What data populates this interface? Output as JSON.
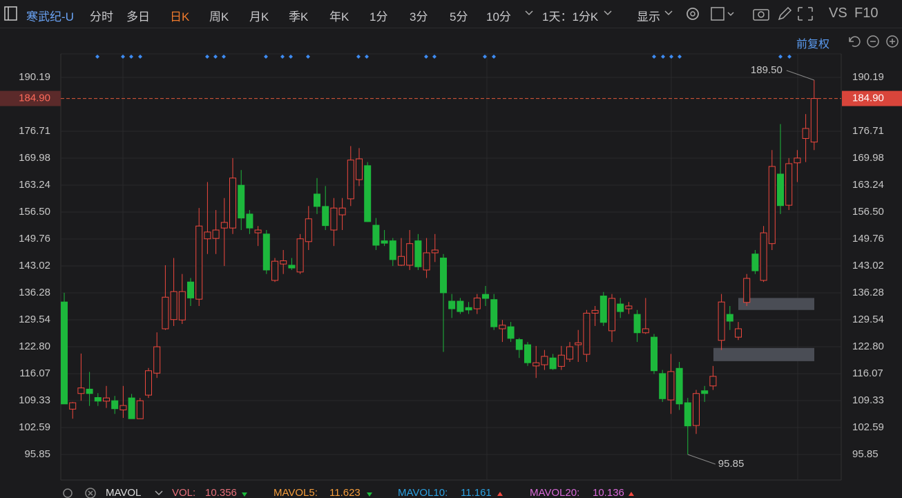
{
  "header": {
    "symbol": "寒武纪-U",
    "tabs": [
      "分时",
      "多日",
      "日K",
      "周K",
      "月K",
      "季K",
      "年K",
      "1分",
      "3分",
      "5分",
      "10分"
    ],
    "period": "1天：1分K",
    "display": "显示",
    "vs": "VS",
    "f10": "F10",
    "adjust": "前复权"
  },
  "chart_data": {
    "type": "candlestick",
    "open": [
      134.0,
      107.2,
      111.1,
      112.2,
      110.1,
      109.2,
      109.3,
      107.0,
      110.0,
      104.8,
      110.7,
      116.2,
      127.3,
      129.6,
      129.5,
      139.0,
      134.7,
      149.8,
      149.9,
      152.5,
      152.5,
      163.2,
      156.0,
      151.3,
      151.0,
      139.4,
      143.5,
      143.2,
      141.5,
      149.1,
      161.0,
      157.9,
      152.0,
      155.8,
      159.8,
      164.6,
      168.1,
      153.2,
      149.3,
      149.3,
      143.2,
      143.2,
      149.3,
      142.0,
      146.3,
      145.0,
      134.2,
      134.2,
      132.6,
      132.3,
      135.9,
      134.6,
      127.3,
      127.8,
      124.6,
      123.3,
      118.0,
      118.3,
      120.0,
      117.9,
      119.7,
      123.3,
      120.9,
      131.2,
      135.5,
      126.8,
      133.5,
      132.3,
      130.9,
      126.3,
      125.2,
      116.1,
      109.5,
      117.4,
      108.8,
      103.1,
      111.8,
      113.0,
      124.4,
      130.9,
      125.2,
      133.9,
      146.0,
      139.4,
      148.6,
      166.0,
      158.2,
      168.8,
      174.9,
      174.0
    ],
    "high": [
      136.3,
      109.0,
      121.1,
      116.5,
      111.2,
      113.0,
      110.5,
      113.0,
      111.0,
      110.0,
      117.5,
      126.4,
      143.2,
      145.0,
      141.0,
      140.0,
      157.5,
      164.0,
      157.0,
      160.0,
      170.0,
      167.0,
      157.0,
      153.0,
      152.0,
      145.0,
      147.0,
      145.0,
      151.0,
      158.0,
      165.0,
      163.0,
      160.0,
      160.0,
      173.0,
      172.5,
      169.0,
      155.0,
      152.0,
      150.0,
      150.0,
      152.0,
      151.0,
      150.0,
      151.0,
      146.0,
      136.0,
      135.0,
      134.0,
      136.0,
      138.0,
      136.0,
      129.5,
      129.0,
      125.0,
      124.0,
      123.0,
      122.0,
      121.0,
      123.0,
      124.0,
      127.0,
      132.0,
      133.0,
      136.5,
      136.0,
      135.0,
      134.0,
      132.0,
      135.0,
      126.0,
      117.0,
      121.0,
      119.0,
      110.0,
      112.0,
      113.0,
      118.0,
      136.0,
      133.0,
      129.0,
      141.0,
      147.0,
      153.0,
      172.0,
      178.5,
      170.0,
      172.0,
      181.0,
      189.5
    ],
    "low": [
      108.5,
      104.8,
      109.3,
      108.0,
      108.0,
      107.5,
      106.0,
      105.0,
      104.8,
      104.8,
      110.0,
      115.0,
      127.0,
      128.0,
      128.5,
      133.0,
      133.0,
      146.0,
      146.0,
      143.0,
      151.0,
      152.0,
      151.0,
      148.0,
      141.0,
      139.0,
      141.0,
      142.0,
      141.0,
      147.0,
      156.0,
      152.0,
      148.0,
      152.0,
      158.0,
      163.0,
      154.0,
      147.0,
      148.0,
      143.0,
      143.0,
      142.0,
      142.0,
      140.0,
      144.0,
      121.5,
      130.0,
      131.0,
      131.0,
      131.0,
      133.0,
      127.0,
      124.0,
      124.0,
      120.0,
      118.0,
      115.0,
      117.0,
      117.0,
      117.0,
      119.0,
      119.0,
      119.0,
      128.0,
      128.0,
      124.0,
      130.0,
      131.0,
      124.0,
      126.0,
      116.0,
      109.0,
      106.0,
      107.0,
      95.85,
      101.0,
      109.0,
      112.0,
      122.0,
      127.0,
      124.5,
      133.0,
      141.0,
      139.0,
      147.0,
      156.0,
      157.0,
      164.0,
      169.0,
      172.0
    ],
    "close": [
      108.5,
      108.8,
      112.5,
      111.1,
      109.2,
      110.0,
      107.3,
      108.1,
      104.8,
      109.3,
      116.8,
      122.8,
      135.2,
      136.6,
      136.6,
      135.0,
      153.0,
      151.5,
      152.0,
      153.9,
      165.0,
      155.0,
      152.5,
      152.0,
      142.0,
      144.2,
      144.3,
      142.5,
      149.8,
      154.8,
      157.9,
      153.1,
      157.5,
      157.5,
      169.5,
      169.8,
      154.1,
      148.2,
      148.7,
      144.6,
      145.4,
      148.6,
      142.8,
      146.3,
      147.0,
      136.3,
      132.3,
      131.6,
      132.0,
      135.0,
      134.9,
      127.8,
      128.2,
      124.9,
      122.1,
      118.8,
      118.8,
      120.4,
      117.3,
      120.7,
      122.8,
      123.8,
      131.2,
      131.9,
      128.9,
      134.9,
      131.6,
      133.0,
      126.3,
      127.3,
      116.8,
      109.8,
      116.6,
      108.5,
      103.0,
      111.1,
      111.1,
      115.4,
      134.0,
      129.2,
      127.3,
      139.9,
      141.8,
      151.3,
      167.9,
      158.1,
      168.6,
      170.0,
      177.4,
      184.9
    ],
    "up_color": "#f0483e",
    "down_color": "#1db83c",
    "ylim": [
      89.46,
      196.06
    ],
    "yticks": [
      95.85,
      {
        "value": 102.59,
        "label": "102.59"
      },
      {
        "value": 109.33,
        "label": "109.33"
      },
      {
        "value": 116.07,
        "label": "116.07"
      },
      {
        "value": 122.8,
        "label": "122.80"
      },
      {
        "value": 129.54,
        "label": "129.54"
      },
      {
        "value": 136.28,
        "label": "136.28"
      },
      {
        "value": 143.02,
        "label": "143.02"
      },
      {
        "value": 149.76,
        "label": "149.76"
      },
      {
        "value": 156.5,
        "label": "156.50"
      },
      {
        "value": 163.24,
        "label": "163.24"
      },
      {
        "value": 169.98,
        "label": "169.98"
      },
      {
        "value": 176.71,
        "label": "176.71"
      },
      {
        "value": 190.19,
        "label": "190.19"
      }
    ],
    "grid": true,
    "current_price": {
      "value": 184.9,
      "label": "184.90"
    },
    "annotations": [
      {
        "value": 189.5,
        "label": "189.50"
      },
      95.85
    ],
    "zones": [
      {
        "low": 132.0,
        "high": 135.0
      },
      {
        "low": 119.2,
        "high": 122.5
      }
    ]
  },
  "indicator_bar": {
    "name": "MAVOL",
    "items": [
      {
        "label": "VOL:",
        "value": 10.356
      },
      {
        "label": "MAVOL5:",
        "value": 11.623
      },
      {
        "label": "MAVOL10:",
        "value": 11.161
      },
      {
        "label": "MAVOL20:",
        "value": 10.136
      }
    ]
  }
}
